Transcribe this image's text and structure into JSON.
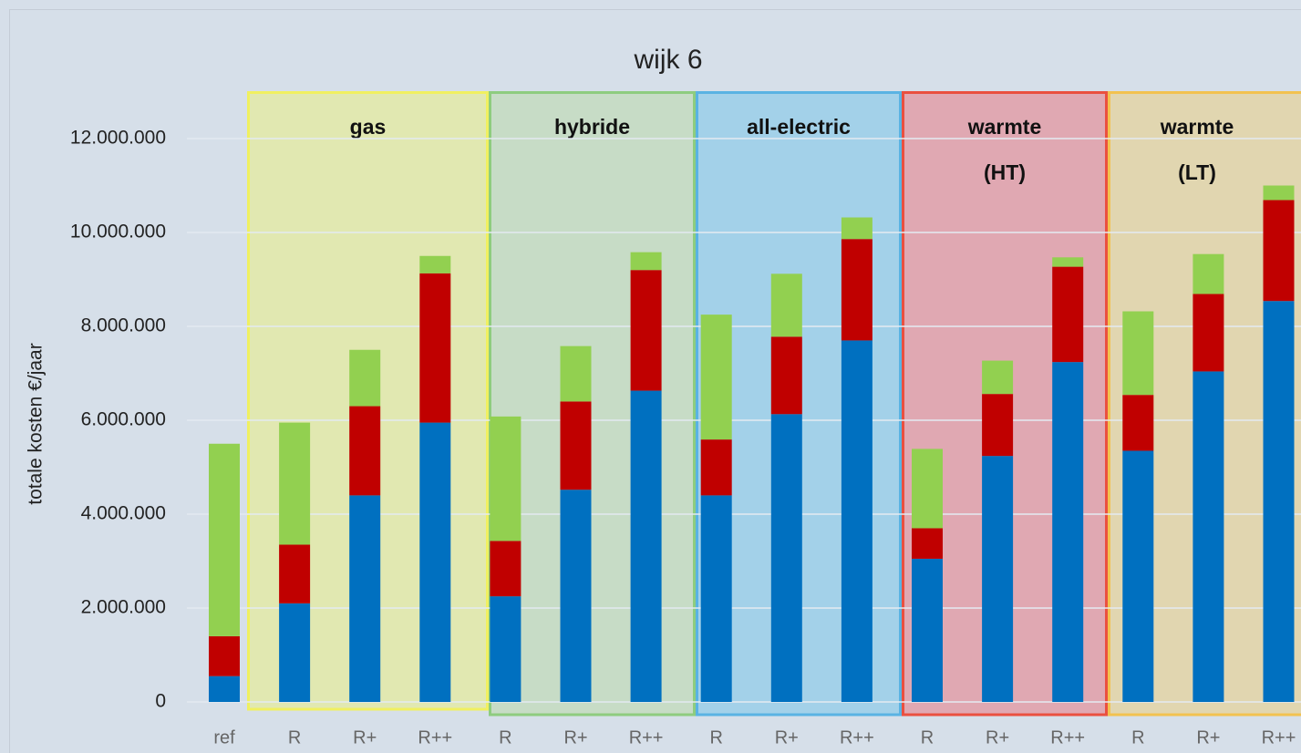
{
  "chart_data": {
    "type": "bar",
    "stacked": true,
    "title": "wijk 6",
    "ylabel": "totale kosten €/jaar",
    "categories": [
      "ref",
      "R",
      "R+",
      "R++",
      "R",
      "R+",
      "R++",
      "R",
      "R+",
      "R++",
      "R",
      "R+",
      "R++",
      "R",
      "R+",
      "R++"
    ],
    "series": [
      {
        "color": "#0070c0",
        "values": [
          550000,
          2100000,
          4400000,
          5950000,
          2250000,
          4520000,
          6630000,
          4400000,
          6130000,
          7700000,
          3050000,
          5240000,
          7240000,
          5350000,
          7040000,
          8540000
        ]
      },
      {
        "color": "#c00000",
        "values": [
          850000,
          1250000,
          1900000,
          3180000,
          1180000,
          1880000,
          2570000,
          1190000,
          1650000,
          2160000,
          650000,
          1320000,
          2030000,
          1190000,
          1650000,
          2150000
        ]
      },
      {
        "color": "#92d050",
        "values": [
          4100000,
          2600000,
          1200000,
          370000,
          2650000,
          1180000,
          380000,
          2660000,
          1340000,
          460000,
          1690000,
          710000,
          200000,
          1780000,
          850000,
          310000
        ]
      }
    ],
    "groups": [
      {
        "label": [
          "gas"
        ],
        "fill": "#e1e8b1",
        "stroke": "#f0f060"
      },
      {
        "label": [
          "hybride"
        ],
        "fill": "#c7dcc6",
        "stroke": "#8ecc7f"
      },
      {
        "label": [
          "all-electric"
        ],
        "fill": "#a3d1e9",
        "stroke": "#5ab3e3"
      },
      {
        "label": [
          "warmte",
          "(HT)"
        ],
        "fill": "#e0a8b2",
        "stroke": "#ea5040"
      },
      {
        "label": [
          "warmte",
          "(LT)"
        ],
        "fill": "#e1d6b0",
        "stroke": "#f2c24f"
      }
    ],
    "ylim": [
      0,
      12000000
    ],
    "yticks": [
      0,
      {
        "value": 2000000,
        "label": "2.000.000"
      },
      {
        "value": 4000000,
        "label": "4.000.000"
      },
      {
        "value": 6000000,
        "label": "6.000.000"
      },
      {
        "value": 8000000,
        "label": "8.000.000"
      },
      {
        "value": 10000000,
        "label": "10.000.000"
      },
      {
        "value": 12000000,
        "label": "12.000.000"
      }
    ],
    "grid": true
  }
}
